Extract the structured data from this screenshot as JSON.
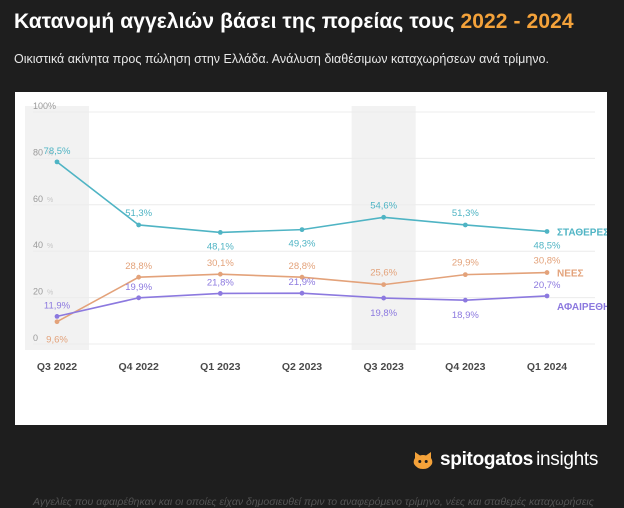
{
  "header": {
    "title_main": "Κατανομή αγγελιών βάσει της πορείας τους",
    "title_years": "2022 - 2024",
    "subtitle": "Οικιστικά ακίνητα προς πώληση στην Ελλάδα. Ανάλυση διαθέσιμων καταχωρήσεων ανά τρίμηνο."
  },
  "footnote": "Αγγελίες που αφαιρέθηκαν και οι οποίες είχαν δημοσιευθεί πριν το αναφερόμενο τρίμηνο, νέες και σταθερές καταχωρήσεις",
  "brand": {
    "name": "spitogatos",
    "suffix": "insights",
    "icon": "cat-head-icon"
  },
  "colors": {
    "accent": "#f4a23a",
    "stable": "#4fb4c4",
    "new": "#e3a27a",
    "removed": "#8c79df",
    "band": "#f2f2f2"
  },
  "chart_data": {
    "type": "line",
    "categories": [
      "Q3 2022",
      "Q4 2022",
      "Q1 2023",
      "Q2 2023",
      "Q3 2023",
      "Q4 2023",
      "Q1 2024"
    ],
    "ylim": [
      0,
      100
    ],
    "yticks": [
      0,
      20,
      40,
      60,
      80,
      100
    ],
    "ytick_labels": [
      "0",
      "20",
      "40",
      "60",
      "80",
      "100%"
    ],
    "ytick_suffix": "%",
    "highlighted_categories": [
      "Q3 2022",
      "Q3 2023"
    ],
    "series": [
      {
        "name": "ΣΤΑΘΕΡΕΣ",
        "color": "#4fb4c4",
        "values": [
          78.5,
          51.3,
          48.1,
          49.3,
          54.6,
          51.3,
          48.5
        ],
        "labels": [
          "78,5%",
          "51,3%",
          "48,1%",
          "49,3%",
          "54,6%",
          "51,3%",
          "48,5%"
        ]
      },
      {
        "name": "ΝΕΕΣ",
        "color": "#e3a27a",
        "values": [
          9.6,
          28.8,
          30.1,
          28.8,
          25.6,
          29.9,
          30.8
        ],
        "labels": [
          "9,6%",
          "28,8%",
          "30,1%",
          "28,8%",
          "25,6%",
          "29,9%",
          "30,8%"
        ]
      },
      {
        "name": "ΑΦΑΙΡΕΘΗΚΑΝ",
        "color": "#8c79df",
        "values": [
          11.9,
          19.9,
          21.8,
          21.9,
          19.8,
          18.9,
          20.7
        ],
        "labels": [
          "11,9%",
          "19,9%",
          "21,8%",
          "21,9%",
          "19,8%",
          "18,9%",
          "20,7%"
        ]
      }
    ],
    "grid": true
  }
}
